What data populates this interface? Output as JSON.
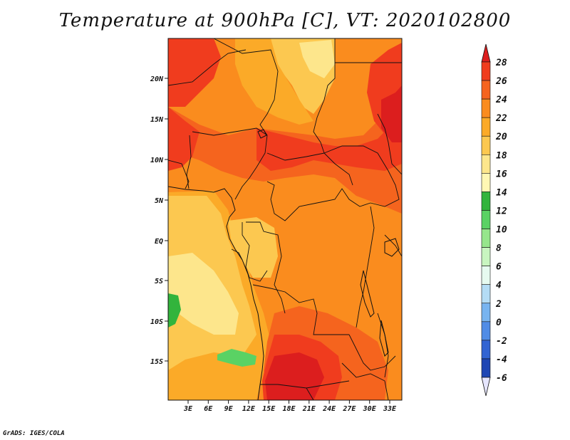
{
  "title": "Temperature at 900hPa [C], VT: 2020102800",
  "credit": "GrADS: IGES/COLA",
  "map": {
    "lat_ticks": [
      "20N",
      "15N",
      "10N",
      "5N",
      "EQ",
      "5S",
      "10S",
      "15S"
    ],
    "lon_ticks": [
      "3E",
      "6E",
      "9E",
      "12E",
      "15E",
      "18E",
      "21E",
      "24E",
      "27E",
      "30E",
      "33E"
    ]
  },
  "colorbar": {
    "labels": [
      "28",
      "26",
      "24",
      "22",
      "20",
      "18",
      "16",
      "14",
      "12",
      "10",
      "8",
      "6",
      "4",
      "2",
      "0",
      "-2",
      "-4",
      "-6"
    ],
    "colors": [
      "#dc1e1e",
      "#f03c1e",
      "#f5641e",
      "#fa8c1e",
      "#fbaa28",
      "#fcc850",
      "#fde68c",
      "#fff7b4",
      "#32b43c",
      "#5ad264",
      "#96e68c",
      "#c8f5c0",
      "#e6faf0",
      "#b4dcf5",
      "#78b4f0",
      "#508ce6",
      "#3264d2",
      "#1e46b4",
      "#1428a0",
      "#0a1478",
      "#e6e6ff"
    ]
  }
}
